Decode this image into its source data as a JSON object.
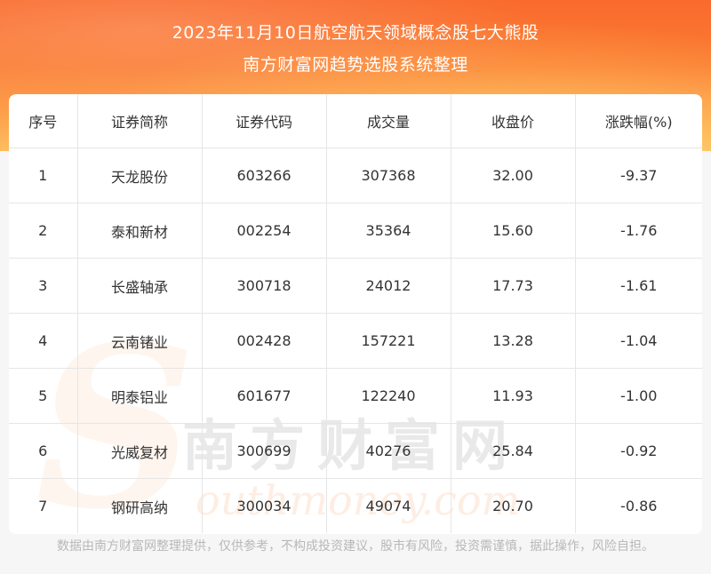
{
  "header": {
    "title_line1": "2023年11月10日航空航天领域概念股七大熊股",
    "title_line2": "南方财富网趋势选股系统整理"
  },
  "table": {
    "columns": [
      "序号",
      "证券简称",
      "证券代码",
      "成交量",
      "收盘价",
      "涨跌幅(%)"
    ],
    "rows": [
      [
        "1",
        "天龙股份",
        "603266",
        "307368",
        "32.00",
        "-9.37"
      ],
      [
        "2",
        "泰和新材",
        "002254",
        "35364",
        "15.60",
        "-1.76"
      ],
      [
        "3",
        "长盛轴承",
        "300718",
        "24012",
        "17.73",
        "-1.61"
      ],
      [
        "4",
        "云南锗业",
        "002428",
        "157221",
        "13.28",
        "-1.04"
      ],
      [
        "5",
        "明泰铝业",
        "601677",
        "122240",
        "11.93",
        "-1.00"
      ],
      [
        "6",
        "光威复材",
        "300699",
        "40276",
        "25.84",
        "-0.92"
      ],
      [
        "7",
        "钢研高纳",
        "300034",
        "49074",
        "20.70",
        "-0.86"
      ]
    ]
  },
  "watermark": {
    "letter": "S",
    "chinese": "南方财富网",
    "english": "outhmoney.com"
  },
  "footer": {
    "disclaimer": "数据由南方财富网整理提供，仅供参考，不构成投资建议，股市有风险，投资需谨慎，据此操作，风险自担。"
  },
  "colors": {
    "header_top": "#f96a2c",
    "header_bottom": "#fdbd5e",
    "text": "#333333",
    "footer_text": "#b8b8b8"
  }
}
